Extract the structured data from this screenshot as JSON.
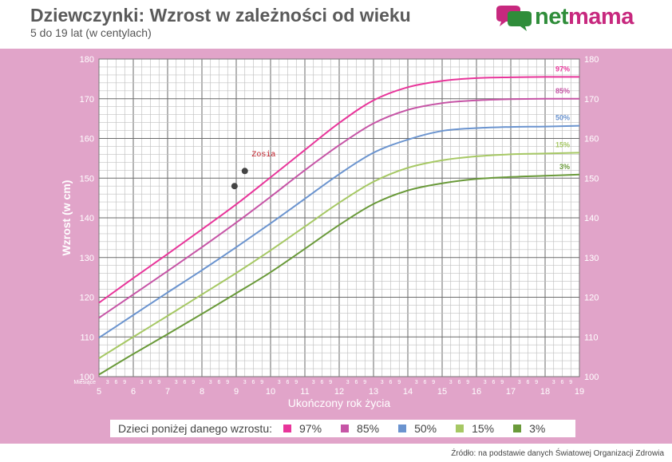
{
  "header": {
    "title": "Dziewczynki: Wzrost w zależności od wieku",
    "subtitle": "5 do 19 lat (w centylach)"
  },
  "logo": {
    "text_net": "net",
    "text_mama": "mama"
  },
  "legend": {
    "label": "Dzieci poniżej danego wzrostu:",
    "items": [
      {
        "label": "97%",
        "color": "#e8359a"
      },
      {
        "label": "85%",
        "color": "#c655a6"
      },
      {
        "label": "50%",
        "color": "#6b94cf"
      },
      {
        "label": "15%",
        "color": "#a6c864"
      },
      {
        "label": "3%",
        "color": "#6a9a3a"
      }
    ]
  },
  "source": "Źródło: na podstawie danych Światowej Organizacji Zdrowia",
  "colors": {
    "band": "#e1a4c9",
    "brand_green": "#2f8d3a",
    "brand_pink": "#c7287e"
  },
  "chart_data": {
    "type": "line",
    "xlabel": "Ukończony rok życia",
    "ylabel": "Wzrost (w cm)",
    "months_label": "Miesiące",
    "month_ticks": [
      "3",
      "6",
      "9"
    ],
    "xlim": [
      5,
      19
    ],
    "ylim": [
      100,
      180
    ],
    "x_ticks": [
      5,
      6,
      7,
      8,
      9,
      10,
      11,
      12,
      13,
      14,
      15,
      16,
      17,
      18,
      19
    ],
    "y_ticks": [
      100,
      110,
      120,
      130,
      140,
      150,
      160,
      170,
      180
    ],
    "grid": true,
    "x": [
      5,
      6,
      7,
      8,
      9,
      10,
      11,
      12,
      13,
      14,
      15,
      16,
      17,
      18,
      19
    ],
    "series": [
      {
        "name": "97%",
        "color": "#e8359a",
        "values": [
          118.6,
          124.8,
          130.9,
          137.1,
          143.4,
          150.2,
          157.1,
          163.9,
          169.6,
          172.9,
          174.5,
          175.2,
          175.4,
          175.5,
          175.5
        ]
      },
      {
        "name": "85%",
        "color": "#c655a6",
        "values": [
          114.8,
          120.7,
          126.6,
          132.6,
          138.8,
          145.3,
          152.0,
          158.3,
          163.8,
          167.2,
          168.9,
          169.6,
          169.9,
          170.0,
          170.0
        ]
      },
      {
        "name": "50%",
        "color": "#6b94cf",
        "values": [
          109.8,
          115.5,
          121.2,
          126.8,
          132.6,
          138.6,
          144.8,
          151.0,
          156.4,
          159.7,
          161.9,
          162.6,
          162.9,
          163.0,
          163.2
        ]
      },
      {
        "name": "15%",
        "color": "#a6c864",
        "values": [
          104.6,
          110.0,
          115.3,
          120.7,
          126.1,
          131.8,
          137.8,
          143.8,
          149.1,
          152.6,
          154.5,
          155.5,
          156.0,
          156.2,
          156.4
        ]
      },
      {
        "name": "3%",
        "color": "#6a9a3a",
        "values": [
          100.5,
          105.7,
          110.7,
          115.8,
          121.0,
          126.3,
          132.2,
          138.2,
          143.5,
          146.9,
          148.7,
          149.8,
          150.3,
          150.6,
          150.9
        ]
      }
    ],
    "points": [
      {
        "x": 8.95,
        "y": 148.0
      },
      {
        "x": 9.25,
        "y": 151.8
      }
    ],
    "annotation": {
      "text": "Zosia",
      "x": 9.45,
      "y": 155.5
    },
    "annotation_color": "#c0202a"
  }
}
